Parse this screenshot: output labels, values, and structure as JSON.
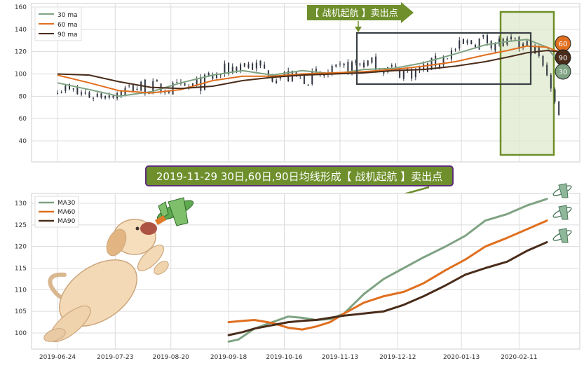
{
  "colors": {
    "ma30": "#7fa383",
    "ma60": "#e06f1f",
    "ma90": "#4a2c1a",
    "candle": "#2e3440",
    "callout_bg": "#6e8f2b",
    "callout_border": "#5b2d7a",
    "highlight_fill": "#dfe8cc",
    "highlight_stroke": "#6e8f2b",
    "box_stroke": "#3a3f44",
    "grid": "#dcdcdc"
  },
  "top_chart": {
    "arrow_label": "【 战机起航 】卖出点",
    "legend": [
      "30 ma",
      "60 ma",
      "90 ma"
    ],
    "badges": [
      "60",
      "90",
      "30"
    ],
    "y_ticks": [
      "40",
      "60",
      "80",
      "100",
      "120",
      "140",
      "160"
    ]
  },
  "main_callout": "2019-11-29 30日,60日,90日均线形成【 战机起航 】卖出点",
  "chart_data": [
    {
      "type": "line",
      "title": "",
      "ylim": [
        30,
        162
      ],
      "y_ticks": [
        40,
        60,
        80,
        100,
        120,
        140,
        160
      ],
      "legend_position": "top-left",
      "x_range": [
        "2019-06-24",
        "2020-03-03"
      ],
      "series": [
        {
          "name": "30 ma",
          "x": [
            "2019-06-24",
            "2019-07-10",
            "2019-07-25",
            "2019-08-10",
            "2019-08-25",
            "2019-09-10",
            "2019-09-25",
            "2019-10-10",
            "2019-10-25",
            "2019-11-10",
            "2019-11-25",
            "2019-12-10",
            "2019-12-25",
            "2020-01-10",
            "2020-01-25",
            "2020-02-05",
            "2020-02-15",
            "2020-02-25",
            "2020-03-02"
          ],
          "values": [
            92,
            86,
            80,
            84,
            92,
            99,
            103,
            99,
            103,
            100,
            104,
            105,
            110,
            118,
            126,
            129,
            131,
            124,
            110
          ]
        },
        {
          "name": "60 ma",
          "x": [
            "2019-06-24",
            "2019-07-10",
            "2019-07-25",
            "2019-08-10",
            "2019-08-25",
            "2019-09-10",
            "2019-09-25",
            "2019-10-10",
            "2019-10-25",
            "2019-11-10",
            "2019-11-25",
            "2019-12-10",
            "2019-12-25",
            "2020-01-10",
            "2020-01-25",
            "2020-02-05",
            "2020-02-15",
            "2020-02-25",
            "2020-03-02"
          ],
          "values": [
            99,
            92,
            85,
            83,
            86,
            94,
            98,
            98,
            100,
            101,
            102,
            104,
            107,
            111,
            117,
            121,
            125,
            124,
            120
          ]
        },
        {
          "name": "90 ma",
          "x": [
            "2019-06-24",
            "2019-07-10",
            "2019-07-25",
            "2019-08-10",
            "2019-08-25",
            "2019-09-10",
            "2019-09-25",
            "2019-10-10",
            "2019-10-25",
            "2019-11-10",
            "2019-11-25",
            "2019-12-10",
            "2019-12-25",
            "2020-01-10",
            "2020-01-25",
            "2020-02-05",
            "2020-02-15",
            "2020-02-25",
            "2020-03-02"
          ],
          "values": [
            100,
            99,
            93,
            88,
            87,
            89,
            94,
            97,
            99,
            100,
            101,
            103,
            104,
            107,
            111,
            115,
            119,
            121,
            120
          ]
        }
      ]
    },
    {
      "type": "line",
      "title": "",
      "ylim": [
        96.5,
        133
      ],
      "y_ticks": [
        100,
        105,
        110,
        115,
        120,
        125,
        130
      ],
      "legend_position": "top-left",
      "x_range": [
        "2019-06-24",
        "2020-03-03"
      ],
      "x_ticks": [
        "2019-06-24",
        "2019-07-23",
        "2019-08-20",
        "2019-09-18",
        "2019-10-16",
        "2019-11-13",
        "2019-12-12",
        "2020-01-13",
        "2020-02-11"
      ],
      "series": [
        {
          "name": "MA30",
          "x": [
            "2019-09-18",
            "2019-09-23",
            "2019-10-01",
            "2019-10-10",
            "2019-10-18",
            "2019-10-25",
            "2019-11-01",
            "2019-11-08",
            "2019-11-15",
            "2019-11-25",
            "2019-12-05",
            "2019-12-15",
            "2019-12-25",
            "2020-01-05",
            "2020-01-15",
            "2020-01-25",
            "2020-02-05",
            "2020-02-15",
            "2020-02-25"
          ],
          "values": [
            98,
            98.5,
            101,
            102.5,
            103.8,
            103.5,
            103,
            103.2,
            104.5,
            109,
            112.5,
            115,
            117.5,
            120,
            122.5,
            126,
            127.5,
            129.5,
            131
          ]
        },
        {
          "name": "MA60",
          "x": [
            "2019-09-18",
            "2019-09-25",
            "2019-10-01",
            "2019-10-10",
            "2019-10-18",
            "2019-10-25",
            "2019-11-01",
            "2019-11-08",
            "2019-11-15",
            "2019-11-25",
            "2019-12-05",
            "2019-12-15",
            "2019-12-25",
            "2020-01-05",
            "2020-01-15",
            "2020-01-25",
            "2020-02-05",
            "2020-02-15",
            "2020-02-25"
          ],
          "values": [
            102.5,
            102.8,
            103,
            102.3,
            101.2,
            100.8,
            101.5,
            102.5,
            104.5,
            107,
            108.5,
            109.5,
            111.5,
            114.5,
            117,
            120,
            122,
            124,
            126
          ]
        },
        {
          "name": "MA90",
          "x": [
            "2019-09-18",
            "2019-09-25",
            "2019-10-01",
            "2019-10-10",
            "2019-10-18",
            "2019-10-25",
            "2019-11-01",
            "2019-11-08",
            "2019-11-15",
            "2019-11-25",
            "2019-12-05",
            "2019-12-15",
            "2019-12-25",
            "2020-01-05",
            "2020-01-15",
            "2020-01-25",
            "2020-02-05",
            "2020-02-15",
            "2020-02-25"
          ],
          "values": [
            99.5,
            100.2,
            101,
            101.8,
            102.5,
            102.8,
            103,
            103.5,
            104,
            104.5,
            105,
            106.5,
            108.5,
            111,
            113.5,
            115,
            116.5,
            119,
            121
          ]
        }
      ]
    }
  ]
}
